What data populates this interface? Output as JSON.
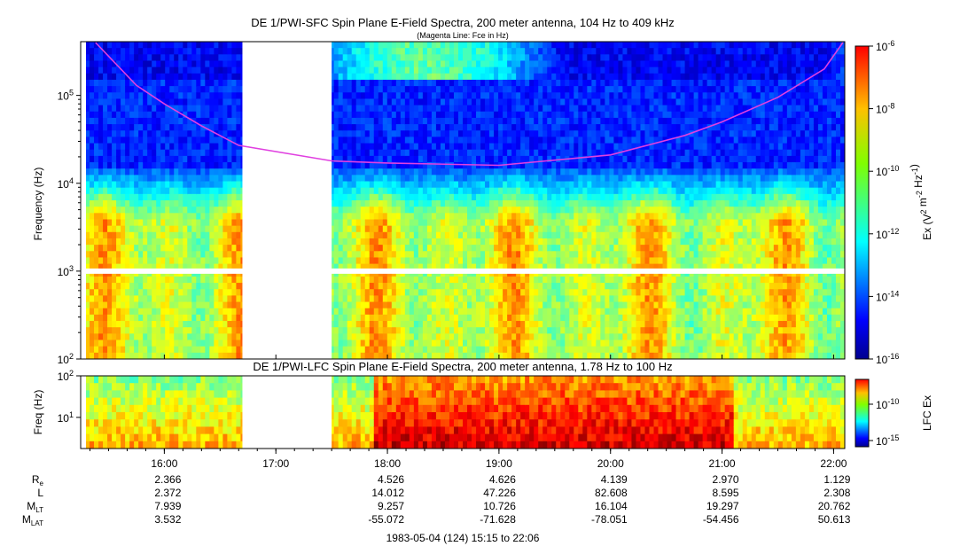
{
  "chart_data": [
    {
      "type": "heatmap",
      "title": "DE 1/PWI-SFC  Spin Plane E-Field Spectra, 200 meter antenna, 104 Hz to 409 kHz",
      "subtitle": "(Magenta Line: Fce in Hz)",
      "ylabel": "Frequency (Hz)",
      "yscale": "log",
      "ylim": [
        100,
        409000
      ],
      "ytick_values": [
        100,
        1000,
        10000,
        100000
      ],
      "ytick_labels": [
        {
          "base": "10",
          "exp": "2"
        },
        {
          "base": "10",
          "exp": "3"
        },
        {
          "base": "10",
          "exp": "4"
        },
        {
          "base": "10",
          "exp": "5"
        }
      ],
      "colorbar": {
        "label": "Ex (V",
        "label_parts": [
          {
            "t": "Ex (V",
            "s": ""
          },
          {
            "t": "2",
            "s": "sup"
          },
          {
            "t": " m",
            "s": ""
          },
          {
            "t": "-2",
            "s": "sup"
          },
          {
            "t": " Hz",
            "s": ""
          },
          {
            "t": "-1",
            "s": "sup"
          },
          {
            "t": ")",
            "s": ""
          }
        ],
        "scale": "log",
        "range": [
          1e-16,
          1e-06
        ],
        "tick_labels": [
          {
            "base": "10",
            "exp": "-6"
          },
          {
            "base": "10",
            "exp": "-8"
          },
          {
            "base": "10",
            "exp": "-10"
          },
          {
            "base": "10",
            "exp": "-12"
          },
          {
            "base": "10",
            "exp": "-14"
          },
          {
            "base": "10",
            "exp": "-16"
          }
        ]
      },
      "data_gap": [
        "16:42",
        "17:30"
      ],
      "fce_line": {
        "color": "#e040e0",
        "time": [
          "15:23",
          "15:45",
          "16:00",
          "16:20",
          "16:40",
          "17:30",
          "18:00",
          "19:00",
          "20:00",
          "20:40",
          "21:00",
          "21:30",
          "21:55",
          "22:05"
        ],
        "freq_hz": [
          400000,
          130000,
          80000,
          45000,
          27000,
          18000,
          17000,
          16000,
          21000,
          35000,
          50000,
          95000,
          200000,
          400000
        ]
      }
    },
    {
      "type": "heatmap",
      "title": "DE 1/PWI-LFC  Spin Plane E-Field Spectra, 200 meter antenna, 1.78 Hz to 100 Hz",
      "ylabel": "Freq (Hz)",
      "yscale": "log",
      "ylim": [
        1.78,
        100
      ],
      "ytick_values": [
        10,
        100
      ],
      "ytick_labels": [
        {
          "base": "10",
          "exp": "1"
        },
        {
          "base": "10",
          "exp": "2"
        }
      ],
      "colorbar": {
        "label": "LFC Ex",
        "scale": "log",
        "tick_labels": [
          {
            "base": "10",
            "exp": "-10"
          },
          {
            "base": "10",
            "exp": "-15"
          }
        ]
      },
      "data_gap": [
        "16:42",
        "17:30"
      ]
    }
  ],
  "time_axis": {
    "ticks": [
      "16:00",
      "17:00",
      "18:00",
      "19:00",
      "20:00",
      "21:00",
      "22:00"
    ],
    "start": "15:15",
    "end": "22:06"
  },
  "ephemeris": {
    "rows": [
      {
        "label": "R",
        "sub": "e",
        "values": [
          "2.366",
          "",
          "4.526",
          "4.626",
          "4.139",
          "2.970",
          "1.129"
        ]
      },
      {
        "label": "L",
        "sub": "",
        "values": [
          "2.372",
          "",
          "14.012",
          "47.226",
          "82.608",
          "8.595",
          "2.308"
        ]
      },
      {
        "label": "M",
        "sub": "LT",
        "values": [
          "7.939",
          "",
          "9.257",
          "10.726",
          "16.104",
          "19.297",
          "20.762"
        ]
      },
      {
        "label": "M",
        "sub": "LAT",
        "values": [
          "3.532",
          "",
          "-55.072",
          "-71.628",
          "-78.051",
          "-54.456",
          "50.613"
        ]
      }
    ]
  },
  "footer": "1983-05-04 (124) 15:15 to 22:06"
}
